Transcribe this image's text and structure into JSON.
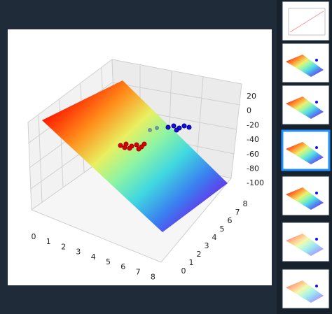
{
  "viewer": {
    "plot": {
      "z_ticks": [
        20,
        0,
        -20,
        -40,
        -60,
        -80,
        -100
      ],
      "x_ticks": [
        0,
        1,
        2,
        3,
        4,
        5,
        6,
        7,
        8
      ],
      "y_ticks": [
        0,
        1,
        2,
        3,
        4,
        5,
        6,
        7,
        8
      ]
    }
  }
}
